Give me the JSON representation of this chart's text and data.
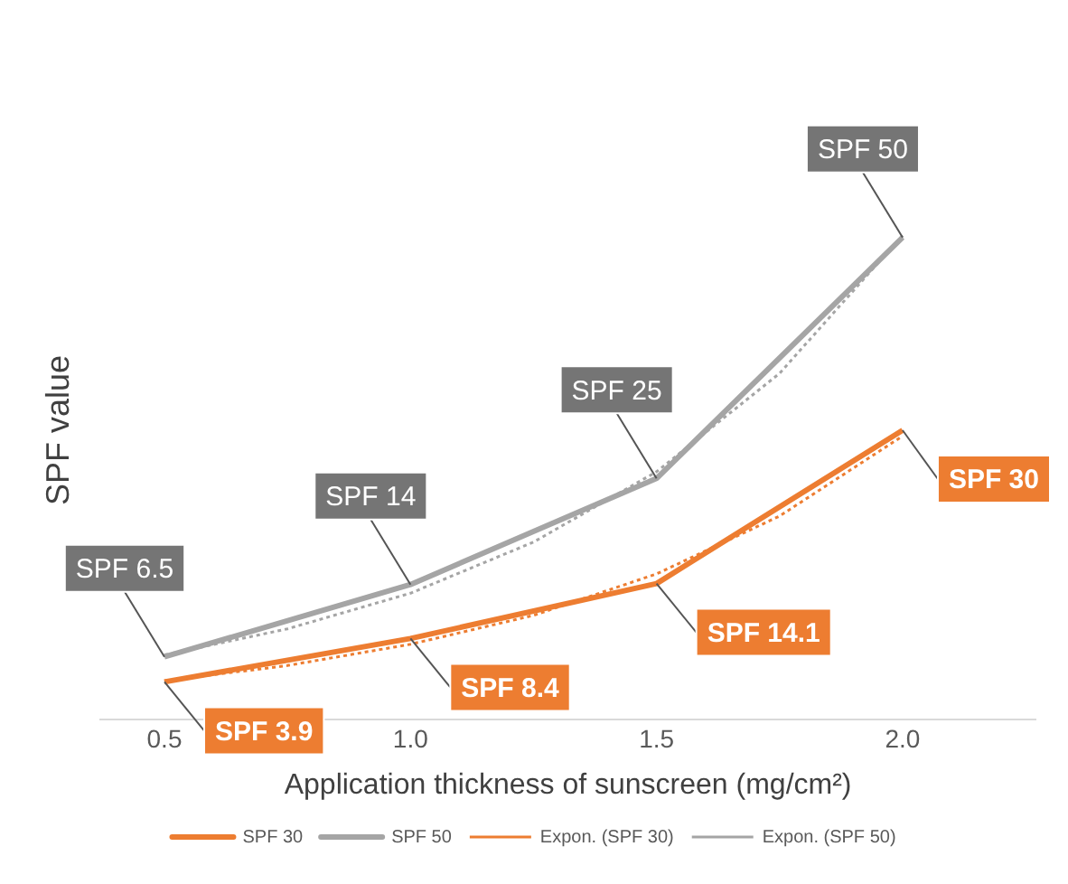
{
  "chart_data": {
    "type": "line",
    "xlabel": "Application thickness of sunscreen (mg/cm²)",
    "ylabel": "SPF value",
    "x": [
      0.5,
      1.0,
      1.5,
      2.0
    ],
    "xlim": [
      0.37,
      2.27
    ],
    "xticks": [
      {
        "value": 0.5,
        "label": "0.5"
      },
      {
        "value": 1,
        "label": "1.0"
      },
      {
        "value": 1.5,
        "label": "1.5"
      },
      {
        "value": 2,
        "label": "2.0"
      }
    ],
    "tick_labels": "x",
    "grid": false,
    "legend": "bottom",
    "marker": "none",
    "series": [
      {
        "name": "SPF 30",
        "color": "#ed7d31",
        "values": [
          3.9,
          8.4,
          14.1,
          30
        ],
        "value_labels": [
          "SPF 3.9",
          "SPF 8.4",
          "SPF 14.1",
          "SPF 30"
        ]
      },
      {
        "name": "SPF 50",
        "color": "#a5a5a5",
        "values": [
          6.5,
          14,
          25,
          50
        ],
        "value_labels": [
          "SPF 6.5",
          "SPF 14",
          "SPF 25",
          "SPF 50"
        ]
      },
      {
        "name": "Expon. (SPF 30)",
        "color": "#ed7d31",
        "line_style": "dotted",
        "x": [
          0.5,
          0.75,
          1.0,
          1.25,
          1.5,
          1.75,
          2.0
        ],
        "values": [
          4.0,
          5.6,
          7.8,
          10.8,
          15.1,
          21.1,
          29.4
        ]
      },
      {
        "name": "Expon. (SPF 50)",
        "color": "#a5a5a5",
        "line_style": "dotted",
        "x": [
          0.5,
          0.75,
          1.0,
          1.25,
          1.5,
          1.75,
          2.0
        ],
        "values": [
          6.7,
          9.4,
          13.1,
          18.4,
          25.7,
          35.9,
          50.2
        ]
      }
    ]
  }
}
